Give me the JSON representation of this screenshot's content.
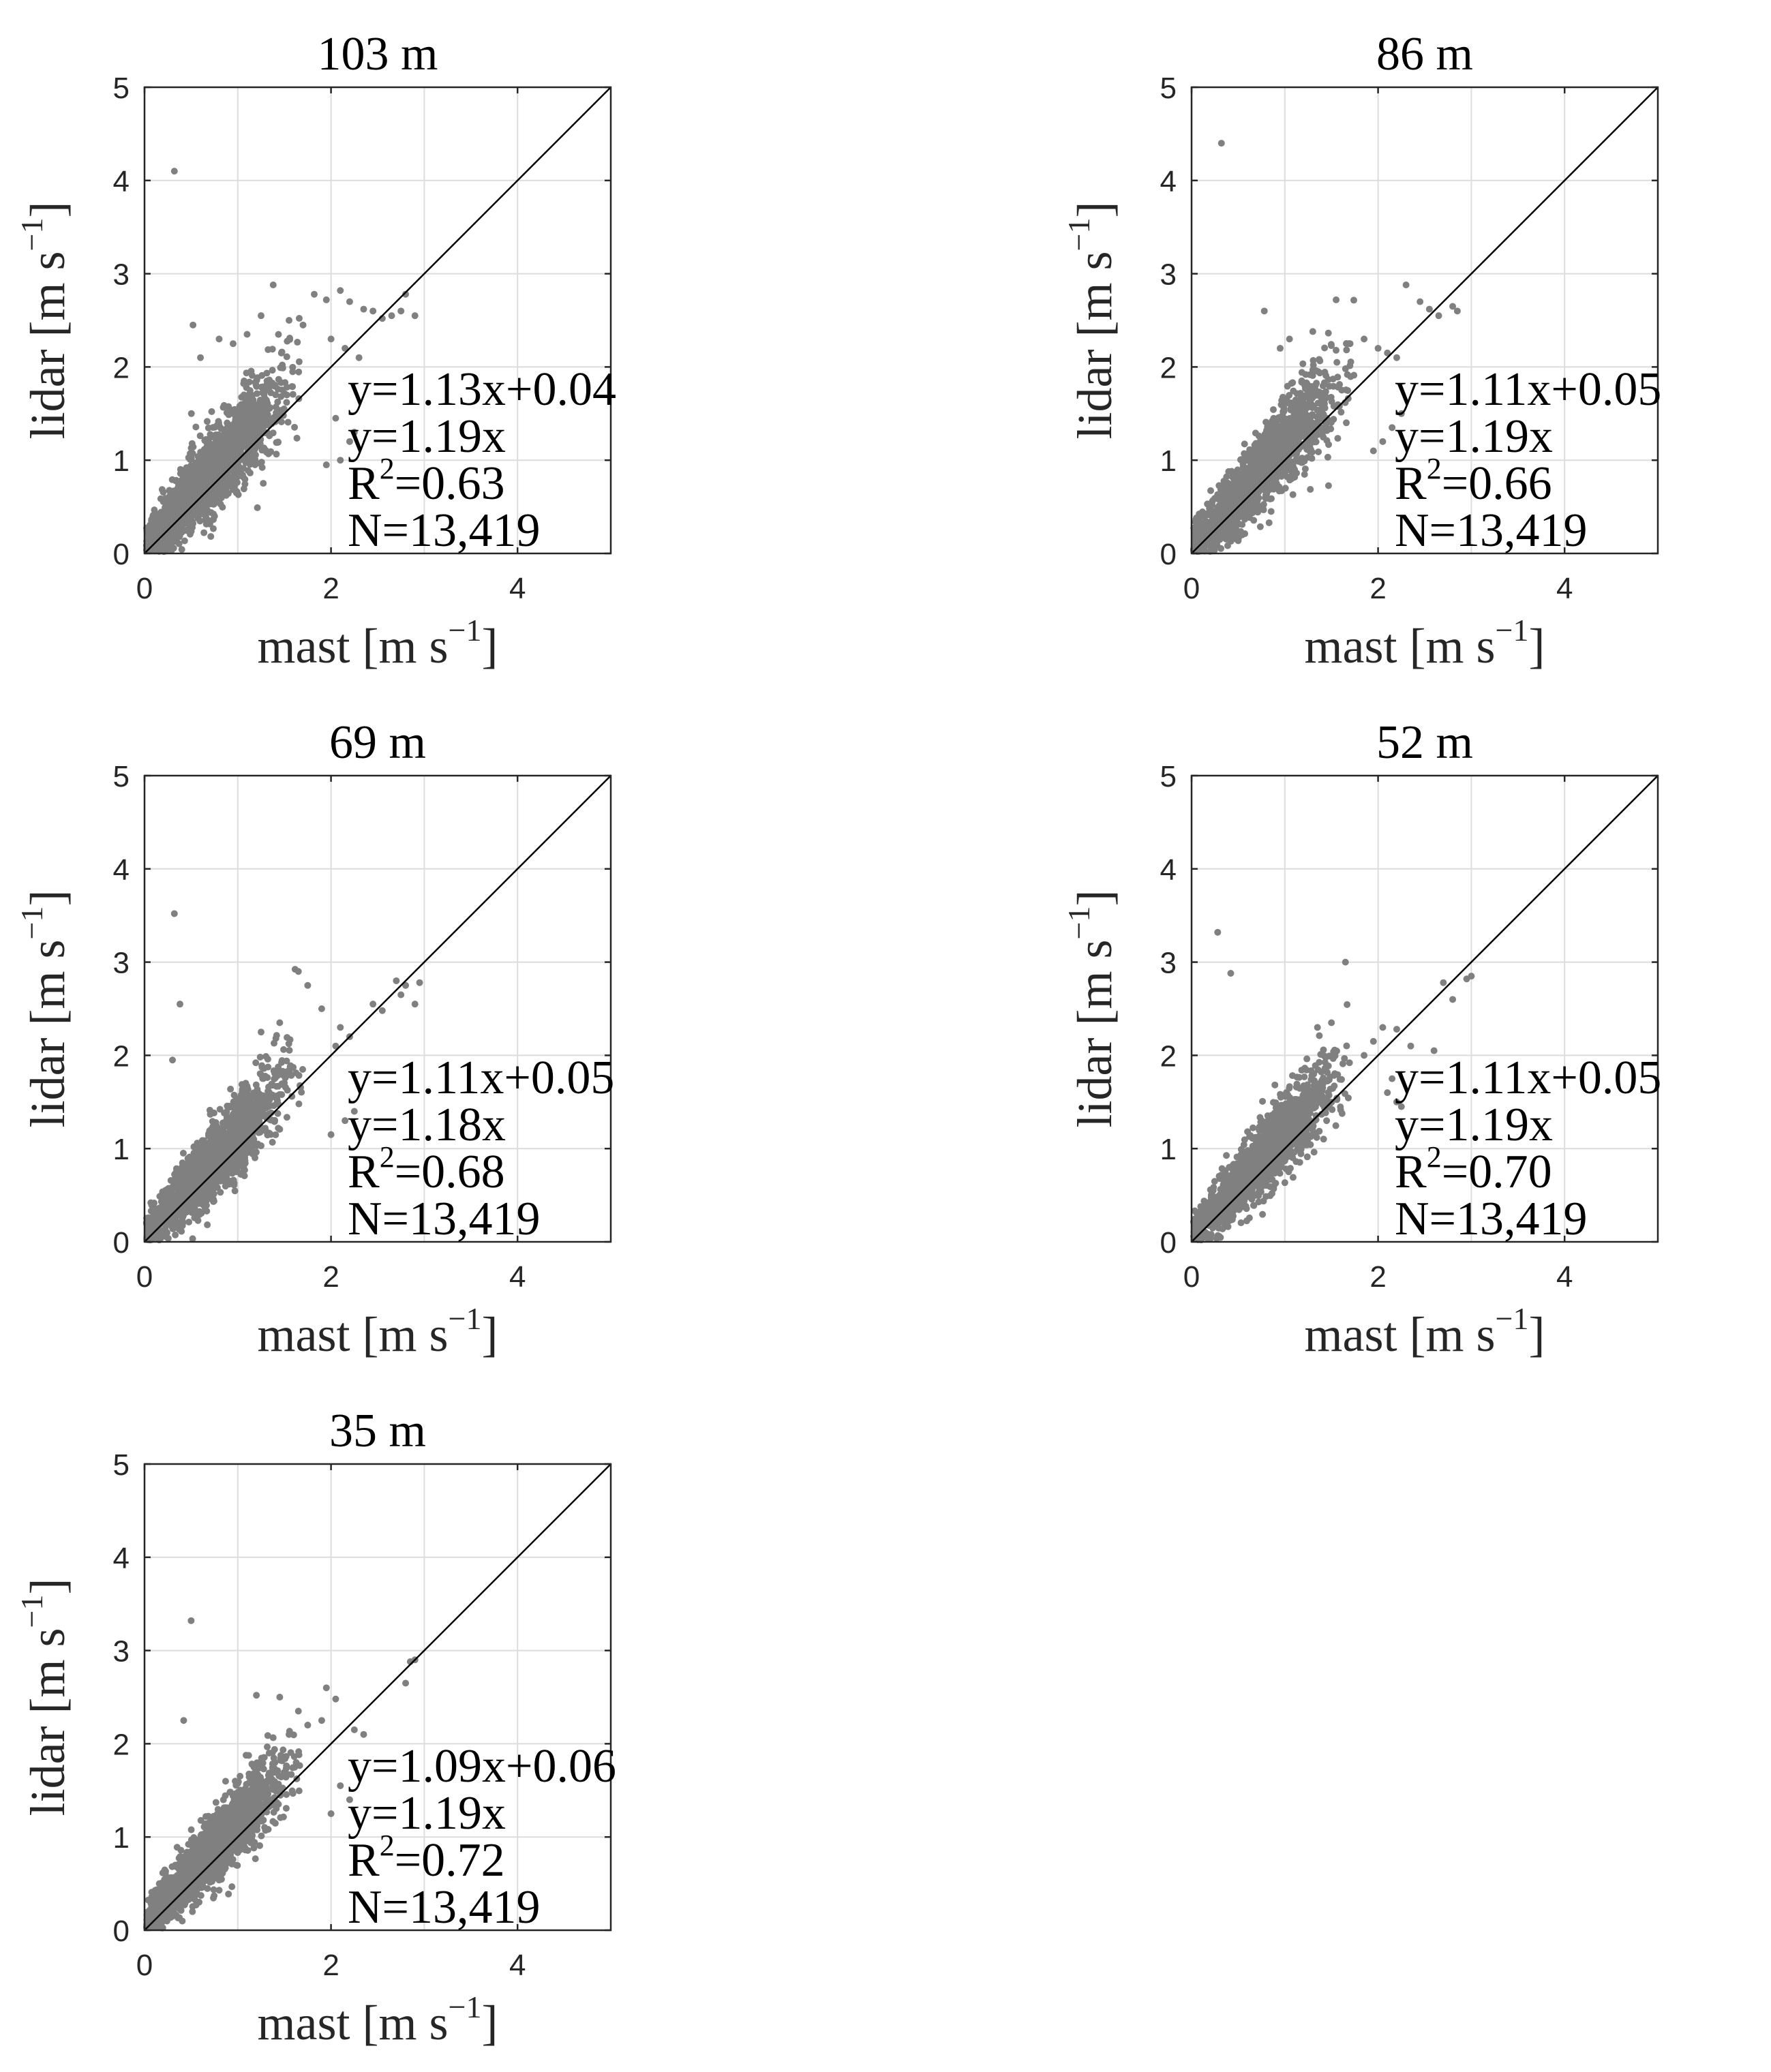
{
  "chart_data": [
    {
      "type": "scatter",
      "title": "103 m",
      "xlabel": "mast [m s",
      "ylabel": "lidar [m s",
      "label_exponent": "−1",
      "label_close": "]",
      "xlim": [
        0,
        5
      ],
      "ylim": [
        0,
        5
      ],
      "xticks": [
        0,
        2,
        4
      ],
      "yticks": [
        0,
        1,
        2,
        3,
        4,
        5
      ],
      "grid": true,
      "reference_line": {
        "slope": 1,
        "intercept": 0
      },
      "annotations": {
        "fit": "y=1.13x+0.04",
        "fit_origin": "y=1.19x",
        "r2_label": "R",
        "r2_exponent": "2",
        "r2_value": "=0.63",
        "n": "N=13,419"
      },
      "point_color": "#808080",
      "points": [
        [
          0.32,
          4.1
        ],
        [
          0.52,
          2.45
        ],
        [
          1.38,
          2.88
        ],
        [
          1.82,
          2.78
        ],
        [
          1.95,
          2.72
        ],
        [
          2.1,
          2.82
        ],
        [
          2.2,
          2.7
        ],
        [
          2.35,
          2.62
        ],
        [
          2.45,
          2.6
        ],
        [
          2.55,
          2.52
        ],
        [
          2.65,
          2.55
        ],
        [
          2.75,
          2.6
        ],
        [
          2.8,
          2.78
        ],
        [
          2.9,
          2.55
        ],
        [
          2.0,
          2.3
        ],
        [
          2.15,
          2.2
        ],
        [
          2.3,
          2.1
        ],
        [
          1.55,
          2.5
        ],
        [
          1.7,
          2.45
        ],
        [
          1.25,
          2.55
        ],
        [
          0.8,
          2.3
        ],
        [
          0.95,
          2.25
        ],
        [
          1.1,
          2.35
        ],
        [
          0.6,
          2.1
        ],
        [
          2.25,
          1.3
        ],
        [
          2.2,
          1.2
        ],
        [
          2.1,
          1.0
        ],
        [
          2.05,
          1.45
        ],
        [
          1.95,
          0.95
        ]
      ],
      "cloud": {
        "slope": 1.13,
        "intercept": 0.04,
        "x_max": 1.7,
        "spread": 0.3,
        "count": 1700
      }
    },
    {
      "type": "scatter",
      "title": "86 m",
      "xlabel": "mast [m s",
      "ylabel": "lidar [m s",
      "label_exponent": "−1",
      "label_close": "]",
      "xlim": [
        0,
        5
      ],
      "ylim": [
        0,
        5
      ],
      "xticks": [
        0,
        2,
        4
      ],
      "yticks": [
        0,
        1,
        2,
        3,
        4,
        5
      ],
      "grid": true,
      "reference_line": {
        "slope": 1,
        "intercept": 0
      },
      "annotations": {
        "fit": "y=1.11x+0.05",
        "fit_origin": "y=1.19x",
        "r2_label": "R",
        "r2_exponent": "2",
        "r2_value": "=0.66",
        "n": "N=13,419"
      },
      "point_color": "#808080",
      "points": [
        [
          0.32,
          4.4
        ],
        [
          0.78,
          2.6
        ],
        [
          1.3,
          2.38
        ],
        [
          1.55,
          2.72
        ],
        [
          2.3,
          2.88
        ],
        [
          2.45,
          2.7
        ],
        [
          2.55,
          2.62
        ],
        [
          2.65,
          2.55
        ],
        [
          2.8,
          2.65
        ],
        [
          2.85,
          2.6
        ],
        [
          2.0,
          2.2
        ],
        [
          2.1,
          2.15
        ],
        [
          2.2,
          2.1
        ],
        [
          1.85,
          2.3
        ],
        [
          1.7,
          2.25
        ],
        [
          1.05,
          2.3
        ],
        [
          0.95,
          2.2
        ],
        [
          2.25,
          1.5
        ],
        [
          2.15,
          1.35
        ],
        [
          2.05,
          1.2
        ],
        [
          1.95,
          1.1
        ]
      ],
      "cloud": {
        "slope": 1.11,
        "intercept": 0.05,
        "x_max": 1.75,
        "spread": 0.28,
        "count": 1700
      }
    },
    {
      "type": "scatter",
      "title": "69 m",
      "xlabel": "mast [m s",
      "ylabel": "lidar [m s",
      "label_exponent": "−1",
      "label_close": "]",
      "xlim": [
        0,
        5
      ],
      "ylim": [
        0,
        5
      ],
      "xticks": [
        0,
        2,
        4
      ],
      "yticks": [
        0,
        1,
        2,
        3,
        4,
        5
      ],
      "grid": true,
      "reference_line": {
        "slope": 1,
        "intercept": 0
      },
      "annotations": {
        "fit": "y=1.11x+0.05",
        "fit_origin": "y=1.18x",
        "r2_label": "R",
        "r2_exponent": "2",
        "r2_value": "=0.68",
        "n": "N=13,419"
      },
      "point_color": "#808080",
      "points": [
        [
          0.32,
          3.52
        ],
        [
          0.38,
          2.55
        ],
        [
          0.3,
          1.95
        ],
        [
          1.65,
          2.9
        ],
        [
          1.75,
          2.75
        ],
        [
          2.45,
          2.55
        ],
        [
          2.55,
          2.48
        ],
        [
          2.7,
          2.8
        ],
        [
          2.8,
          2.75
        ],
        [
          2.95,
          2.78
        ],
        [
          2.75,
          2.65
        ],
        [
          2.9,
          2.55
        ],
        [
          2.1,
          2.3
        ],
        [
          2.2,
          2.2
        ],
        [
          2.05,
          2.1
        ],
        [
          1.9,
          2.5
        ],
        [
          1.45,
          2.35
        ],
        [
          1.25,
          2.25
        ],
        [
          2.25,
          1.4
        ],
        [
          2.15,
          1.3
        ],
        [
          2.0,
          1.15
        ]
      ],
      "cloud": {
        "slope": 1.11,
        "intercept": 0.05,
        "x_max": 1.7,
        "spread": 0.26,
        "count": 1700
      }
    },
    {
      "type": "scatter",
      "title": "52 m",
      "xlabel": "mast [m s",
      "ylabel": "lidar [m s",
      "label_exponent": "−1",
      "label_close": "]",
      "xlim": [
        0,
        5
      ],
      "ylim": [
        0,
        5
      ],
      "xticks": [
        0,
        2,
        4
      ],
      "yticks": [
        0,
        1,
        2,
        3,
        4,
        5
      ],
      "grid": true,
      "reference_line": {
        "slope": 1,
        "intercept": 0
      },
      "annotations": {
        "fit": "y=1.11x+0.05",
        "fit_origin": "y=1.19x",
        "r2_label": "R",
        "r2_exponent": "2",
        "r2_value": "=0.70",
        "n": "N=13,419"
      },
      "point_color": "#808080",
      "points": [
        [
          0.28,
          3.32
        ],
        [
          0.42,
          2.88
        ],
        [
          1.65,
          3.0
        ],
        [
          1.5,
          2.35
        ],
        [
          1.35,
          2.3
        ],
        [
          2.05,
          2.3
        ],
        [
          2.2,
          2.28
        ],
        [
          2.35,
          2.1
        ],
        [
          2.6,
          2.05
        ],
        [
          2.7,
          2.78
        ],
        [
          2.8,
          2.6
        ],
        [
          2.95,
          2.82
        ],
        [
          3.0,
          2.85
        ],
        [
          2.1,
          1.6
        ],
        [
          2.2,
          1.5
        ],
        [
          2.25,
          1.45
        ],
        [
          2.15,
          1.75
        ],
        [
          1.95,
          2.15
        ],
        [
          1.85,
          2.0
        ]
      ],
      "cloud": {
        "slope": 1.11,
        "intercept": 0.05,
        "x_max": 1.7,
        "spread": 0.25,
        "count": 1700
      }
    },
    {
      "type": "scatter",
      "title": "35 m",
      "xlabel": "mast [m s",
      "ylabel": "lidar [m s",
      "label_exponent": "−1",
      "label_close": "]",
      "xlim": [
        0,
        5
      ],
      "ylim": [
        0,
        5
      ],
      "xticks": [
        0,
        2,
        4
      ],
      "yticks": [
        0,
        1,
        2,
        3,
        4,
        5
      ],
      "grid": true,
      "reference_line": {
        "slope": 1,
        "intercept": 0
      },
      "annotations": {
        "fit": "y=1.09x+0.06",
        "fit_origin": "y=1.19x",
        "r2_label": "R",
        "r2_exponent": "2",
        "r2_value": "=0.72",
        "n": "N=13,419"
      },
      "point_color": "#808080",
      "points": [
        [
          0.5,
          3.32
        ],
        [
          0.42,
          2.25
        ],
        [
          1.2,
          2.52
        ],
        [
          1.45,
          2.5
        ],
        [
          1.65,
          2.35
        ],
        [
          1.95,
          2.6
        ],
        [
          2.05,
          2.48
        ],
        [
          2.25,
          2.15
        ],
        [
          2.35,
          2.1
        ],
        [
          2.8,
          2.65
        ],
        [
          2.85,
          2.88
        ],
        [
          2.9,
          2.9
        ],
        [
          2.1,
          1.55
        ],
        [
          2.2,
          1.4
        ],
        [
          2.0,
          1.25
        ],
        [
          1.9,
          2.25
        ],
        [
          1.75,
          2.2
        ],
        [
          1.55,
          2.1
        ]
      ],
      "cloud": {
        "slope": 1.09,
        "intercept": 0.06,
        "x_max": 1.7,
        "spread": 0.24,
        "count": 1700
      }
    }
  ]
}
